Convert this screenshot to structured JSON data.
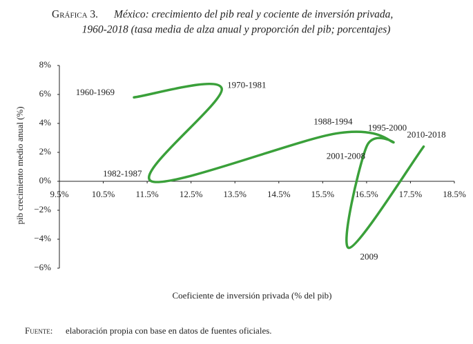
{
  "chart_data": {
    "type": "line",
    "title_prefix": "Gráfica 3.",
    "title": [
      "México: crecimiento del pib real y cociente de inversión privada,",
      "1960-2018 (tasa media de alza anual y proporción del pib; porcentajes)"
    ],
    "x_label": "Coeficiente de inversión privada (% del pib)",
    "y_label": "pib crecimiento medio anual (%)",
    "source_label": "Fuente:",
    "source": "elaboración propia con base en datos de fuentes oficiales.",
    "color": "#3aa03a",
    "point_labels": [
      "1960-1969",
      "1970-1981",
      "1982-1987",
      "1988-1994",
      "1995-2000",
      "2001-2008",
      "2009",
      "2010-2018"
    ],
    "x": [
      11.2,
      13.2,
      11.6,
      15.8,
      17.1,
      16.5,
      16.1,
      17.8
    ],
    "y": [
      5.8,
      6.4,
      0.0,
      3.3,
      2.7,
      2.4,
      -4.6,
      2.4
    ],
    "xlim": [
      9.5,
      18.5
    ],
    "ylim": [
      -6,
      8
    ],
    "xticks": [
      {
        "value": 9.5,
        "label": "9.5%"
      },
      {
        "value": 10.5,
        "label": "10.5%"
      },
      {
        "value": 11.5,
        "label": "11.5%"
      },
      {
        "value": 12.5,
        "label": "12.5%"
      },
      {
        "value": 13.5,
        "label": "13.5%"
      },
      {
        "value": 14.5,
        "label": "14.5%"
      },
      {
        "value": 15.5,
        "label": "15.5%"
      },
      {
        "value": 16.5,
        "label": "16.5%"
      },
      {
        "value": 17.5,
        "label": "17.5%"
      },
      {
        "value": 18.5,
        "label": "18.5%"
      }
    ],
    "yticks": [
      {
        "value": 8,
        "label": "8%"
      },
      {
        "value": 6,
        "label": "6%"
      },
      {
        "value": 4,
        "label": "4%"
      },
      {
        "value": 2,
        "label": "2%"
      },
      {
        "value": 0,
        "label": "0%"
      },
      {
        "value": -2,
        "label": "−2%"
      },
      {
        "value": -4,
        "label": "−4%"
      },
      {
        "value": -6,
        "label": "−6%"
      }
    ],
    "grid": false
  }
}
